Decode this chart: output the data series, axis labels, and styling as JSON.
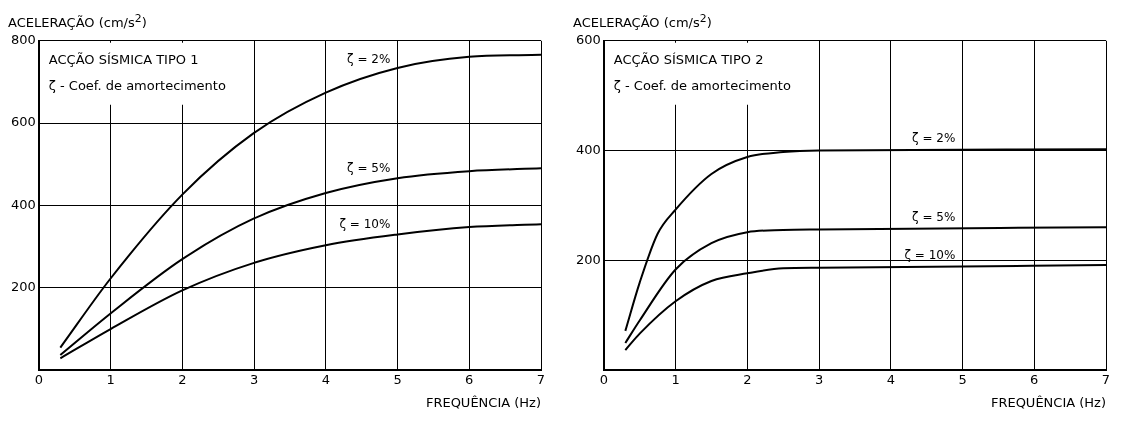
{
  "chart_data": [
    {
      "type": "line",
      "ylabel": "ACELERAÇÃO (cm/s$^{2}$)",
      "xlabel": "FREQUÊNCIA (Hz)",
      "annotations": [
        "ACÇÃO SÍSMICA TIPO 1",
        "ζ - Coef. de amortecimento"
      ],
      "xlim": [
        0,
        7
      ],
      "xticks": [
        0,
        1,
        2,
        3,
        4,
        5,
        6,
        7
      ],
      "ylim": [
        0,
        800
      ],
      "yticks": [
        {
          "value": 0,
          "label": null
        },
        200,
        400,
        600,
        800
      ],
      "grid": true,
      "legend": false,
      "marker": "none",
      "line_style": "solid",
      "series": [
        {
          "name": "ζ = 2%",
          "color": "#000000",
          "x": [
            0.3,
            1,
            2,
            3,
            4,
            5,
            6,
            7
          ],
          "values": [
            54,
            222,
            426,
            576,
            674,
            734,
            761,
            766
          ]
        },
        {
          "name": "ζ = 5%",
          "color": "#000000",
          "x": [
            0.3,
            1,
            2,
            3,
            4,
            5,
            6,
            7
          ],
          "values": [
            36,
            137,
            269,
            368,
            430,
            466,
            483,
            490
          ]
        },
        {
          "name": "ζ = 10%",
          "color": "#000000",
          "x": [
            0.3,
            1,
            2,
            3,
            4,
            5,
            6,
            7
          ],
          "values": [
            28,
            99,
            193,
            260,
            303,
            329,
            347,
            354
          ]
        }
      ]
    },
    {
      "type": "line",
      "ylabel": "ACELERAÇÃO (cm/s$^{2}$)",
      "xlabel": "FREQUÊNCIA (Hz)",
      "annotations": [
        "ACÇÃO SÍSMICA TIPO 2",
        "ζ - Coef. de amortecimento"
      ],
      "xlim": [
        0,
        7
      ],
      "xticks": [
        0,
        1,
        2,
        3,
        4,
        5,
        6,
        7
      ],
      "ylim": [
        0,
        600
      ],
      "yticks": [
        {
          "value": 0,
          "label": null
        },
        200,
        400,
        600
      ],
      "grid": true,
      "legend": false,
      "marker": "none",
      "line_style": "solid",
      "series": [
        {
          "name": "ζ = 2%",
          "color": "#000000",
          "x": [
            0.3,
            0.5,
            0.75,
            1,
            1.5,
            2,
            2.5,
            3,
            7
          ],
          "values": [
            71,
            159,
            248,
            292,
            357,
            388,
            397,
            400,
            402
          ]
        },
        {
          "name": "ζ = 5%",
          "color": "#000000",
          "x": [
            0.3,
            0.5,
            1,
            1.5,
            2,
            2.5,
            3,
            7
          ],
          "values": [
            49,
            90,
            183,
            231,
            251,
            255,
            256,
            260
          ]
        },
        {
          "name": "ζ = 10%",
          "color": "#000000",
          "x": [
            0.3,
            0.5,
            1,
            1.5,
            2,
            2.5,
            3,
            7
          ],
          "values": [
            36,
            66,
            125,
            162,
            176,
            185,
            186,
            191
          ]
        }
      ]
    }
  ]
}
